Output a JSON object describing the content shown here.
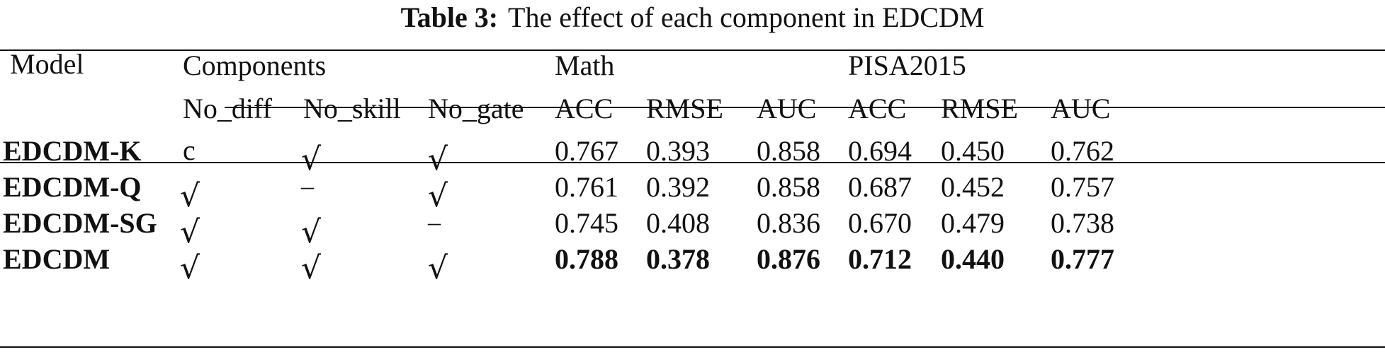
{
  "caption": {
    "label": "Table 3:",
    "text": "The effect of each component in EDCDM"
  },
  "headers": {
    "model": "Model",
    "components": "Components",
    "math": "Math",
    "pisa": "PISA2015",
    "sub": [
      "No_diff",
      "No_skill",
      "No_gate",
      "ACC",
      "RMSE",
      "AUC",
      "ACC",
      "RMSE",
      "AUC"
    ]
  },
  "rows": [
    {
      "model": "EDCDM-K",
      "no_diff": "c",
      "no_skill": "√",
      "no_gate": "√",
      "math": [
        "0.767",
        "0.393",
        "0.858"
      ],
      "pisa": [
        "0.694",
        "0.450",
        "0.762"
      ]
    },
    {
      "model": "EDCDM-Q",
      "no_diff": "√",
      "no_skill": "–",
      "no_gate": "√",
      "math": [
        "0.761",
        "0.392",
        "0.858"
      ],
      "pisa": [
        "0.687",
        "0.452",
        "0.757"
      ]
    },
    {
      "model": "EDCDM-SG",
      "no_diff": "√",
      "no_skill": "√",
      "no_gate": "–",
      "math": [
        "0.745",
        "0.408",
        "0.836"
      ],
      "pisa": [
        "0.670",
        "0.479",
        "0.738"
      ]
    },
    {
      "model": "EDCDM",
      "no_diff": "√",
      "no_skill": "√",
      "no_gate": "√",
      "math": [
        "0.788",
        "0.378",
        "0.876"
      ],
      "pisa": [
        "0.712",
        "0.440",
        "0.777"
      ]
    }
  ]
}
